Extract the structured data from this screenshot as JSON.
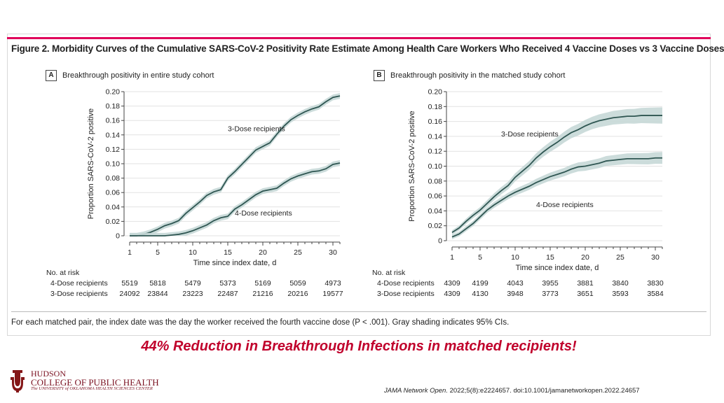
{
  "figure_title": "Figure 2. Morbidity Curves of the Cumulative SARS-CoV-2 Positivity Rate Estimate Among Health Care Workers Who Received 4 Vaccine Doses vs 3 Vaccine Doses",
  "footnote": "For each matched pair, the index date was the day the worker received the fourth vaccine dose (P < .001). Gray shading indicates 95% CIs.",
  "headline": "44% Reduction in Breakthrough Infections in matched recipients!",
  "citation": "JAMA Network Open. 2022;5(8):e2224657. doi:10.1001/jamanetworkopen.2022.24657",
  "logo": {
    "line1": "HUDSON",
    "line2": "COLLEGE OF PUBLIC HEALTH",
    "line3": "The UNIVERSITY of OKLAHOMA HEALTH SCIENCES CENTER"
  },
  "colors": {
    "accent": "#e0005a",
    "line": "#2f5652",
    "band": "#c6d8d7",
    "headline": "#c0002b",
    "logo": "#841617"
  },
  "chart_data": [
    {
      "panel": "A",
      "panel_label": "Breakthrough positivity in entire study cohort",
      "type": "line",
      "xlabel": "Time since index date, d",
      "ylabel": "Proportion SARS-CoV-2 positive",
      "xlim": [
        1,
        31
      ],
      "ylim": [
        0,
        0.2
      ],
      "xticks": [
        1,
        5,
        10,
        15,
        20,
        25,
        30
      ],
      "yticks": [
        "0",
        "0.02",
        "0.04",
        "0.06",
        "0.08",
        "0.10",
        "0.12",
        "0.14",
        "0.16",
        "0.18",
        "0.20"
      ],
      "series": [
        {
          "name": "3-Dose recipients",
          "x": [
            1,
            2,
            3,
            4,
            5,
            6,
            7,
            8,
            9,
            10,
            11,
            12,
            13,
            14,
            15,
            16,
            17,
            18,
            19,
            20,
            21,
            22,
            23,
            24,
            25,
            26,
            27,
            28,
            29,
            30,
            31
          ],
          "y": [
            0,
            0,
            0.002,
            0.005,
            0.009,
            0.014,
            0.017,
            0.021,
            0.031,
            0.039,
            0.047,
            0.056,
            0.061,
            0.064,
            0.08,
            0.089,
            0.099,
            0.109,
            0.119,
            0.124,
            0.129,
            0.141,
            0.152,
            0.161,
            0.167,
            0.172,
            0.176,
            0.179,
            0.186,
            0.192,
            0.194
          ],
          "ci": 0.004,
          "label_at": [
            15,
            0.145
          ]
        },
        {
          "name": "4-Dose recipients",
          "x": [
            1,
            2,
            3,
            4,
            5,
            6,
            7,
            8,
            9,
            10,
            11,
            12,
            13,
            14,
            15,
            16,
            17,
            18,
            19,
            20,
            21,
            22,
            23,
            24,
            25,
            26,
            27,
            28,
            29,
            30,
            31
          ],
          "y": [
            0,
            0,
            0,
            0,
            0,
            0,
            0.001,
            0.002,
            0.004,
            0.007,
            0.011,
            0.015,
            0.021,
            0.025,
            0.027,
            0.037,
            0.043,
            0.05,
            0.057,
            0.062,
            0.064,
            0.066,
            0.073,
            0.079,
            0.083,
            0.086,
            0.089,
            0.09,
            0.093,
            0.099,
            0.101
          ],
          "ci": 0.004,
          "label_at": [
            16,
            0.028
          ]
        }
      ],
      "risk": {
        "title": "No. at risk",
        "x": [
          1,
          5,
          10,
          15,
          20,
          25,
          30
        ],
        "rows": [
          {
            "label": "4-Dose recipients",
            "values": [
              "5519",
              "5818",
              "5479",
              "5373",
              "5169",
              "5059",
              "4973"
            ]
          },
          {
            "label": "3-Dose recipients",
            "values": [
              "24092",
              "23844",
              "23223",
              "22487",
              "21216",
              "20216",
              "19577"
            ]
          }
        ]
      }
    },
    {
      "panel": "B",
      "panel_label": "Breakthrough positivity in the matched study cohort",
      "type": "line",
      "xlabel": "Time since index date, d",
      "ylabel": "Proportion SARS-CoV-2 positive",
      "xlim": [
        1,
        31
      ],
      "ylim": [
        0,
        0.2
      ],
      "xticks": [
        1,
        5,
        10,
        15,
        20,
        25,
        30
      ],
      "yticks": [
        "0",
        "0.02",
        "0.04",
        "0.06",
        "0.08",
        "0.10",
        "0.12",
        "0.14",
        "0.16",
        "0.18",
        "0.20"
      ],
      "series": [
        {
          "name": "3-Dose recipients",
          "x": [
            1,
            2,
            3,
            4,
            5,
            6,
            7,
            8,
            9,
            10,
            11,
            12,
            13,
            14,
            15,
            16,
            17,
            18,
            19,
            20,
            21,
            22,
            23,
            24,
            25,
            26,
            27,
            28,
            29,
            30,
            31
          ],
          "y": [
            0.011,
            0.017,
            0.026,
            0.034,
            0.041,
            0.05,
            0.059,
            0.067,
            0.074,
            0.085,
            0.093,
            0.101,
            0.111,
            0.119,
            0.126,
            0.132,
            0.139,
            0.145,
            0.149,
            0.154,
            0.158,
            0.161,
            0.163,
            0.165,
            0.166,
            0.167,
            0.167,
            0.168,
            0.168,
            0.168,
            0.168
          ],
          "ci_min": 0.003,
          "ci_max": 0.011,
          "label_at": [
            8,
            0.14
          ]
        },
        {
          "name": "4-Dose recipients",
          "x": [
            1,
            2,
            3,
            4,
            5,
            6,
            7,
            8,
            9,
            10,
            11,
            12,
            13,
            14,
            15,
            16,
            17,
            18,
            19,
            20,
            21,
            22,
            23,
            24,
            25,
            26,
            27,
            28,
            29,
            30,
            31
          ],
          "y": [
            0.005,
            0.009,
            0.016,
            0.023,
            0.032,
            0.041,
            0.048,
            0.054,
            0.06,
            0.065,
            0.069,
            0.073,
            0.078,
            0.082,
            0.086,
            0.089,
            0.092,
            0.096,
            0.099,
            0.1,
            0.102,
            0.104,
            0.107,
            0.108,
            0.109,
            0.11,
            0.11,
            0.11,
            0.11,
            0.111,
            0.111
          ],
          "ci_min": 0.003,
          "ci_max": 0.008,
          "label_at": [
            13,
            0.045
          ]
        }
      ],
      "risk": {
        "title": "No. at risk",
        "x": [
          1,
          5,
          10,
          15,
          20,
          25,
          30
        ],
        "rows": [
          {
            "label": "4-Dose recipients",
            "values": [
              "4309",
              "4199",
              "4043",
              "3955",
              "3881",
              "3840",
              "3830"
            ]
          },
          {
            "label": "3-Dose recipients",
            "values": [
              "4309",
              "4130",
              "3948",
              "3773",
              "3651",
              "3593",
              "3584"
            ]
          }
        ]
      }
    }
  ]
}
